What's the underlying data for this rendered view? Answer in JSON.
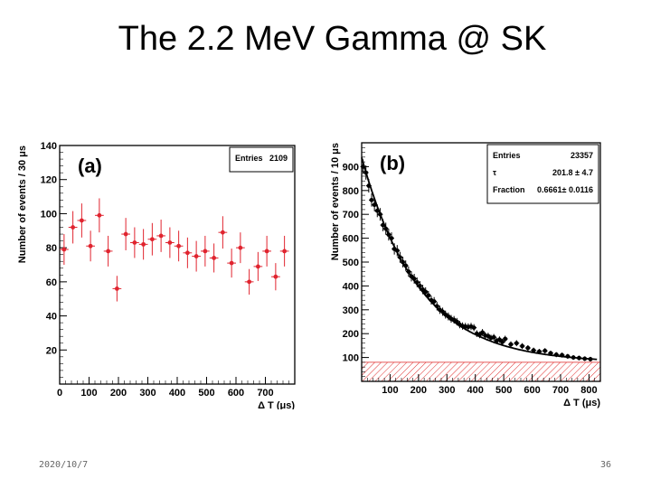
{
  "slide": {
    "title": "The 2.2 MeV Gamma @ SK",
    "date": "2020/10/7",
    "page": "36"
  },
  "chart_data": [
    {
      "type": "scatter",
      "panel_label": "(a)",
      "title": "",
      "xlabel": "Δ T (μs)",
      "ylabel": "Number of events / 30 μs",
      "xlim": [
        0,
        800
      ],
      "ylim": [
        0,
        140
      ],
      "xticks": [
        0,
        100,
        200,
        300,
        400,
        500,
        600,
        700
      ],
      "yticks": [
        20,
        40,
        60,
        80,
        100,
        120,
        140
      ],
      "stats": [
        {
          "label": "Entries",
          "value": "2109"
        }
      ],
      "color": "#e0242f",
      "series": [
        {
          "name": "data",
          "x": [
            15,
            45,
            75,
            105,
            135,
            165,
            195,
            225,
            255,
            285,
            315,
            345,
            375,
            405,
            435,
            465,
            495,
            525,
            555,
            585,
            615,
            645,
            675,
            705,
            735,
            765
          ],
          "y": [
            79,
            92,
            96,
            81,
            99,
            78,
            56,
            88,
            83,
            82,
            85,
            87,
            83,
            81,
            77,
            75,
            78,
            74,
            89,
            71,
            80,
            60,
            69,
            78,
            63,
            78
          ],
          "yerr": [
            9,
            9.5,
            10,
            9,
            10,
            9,
            7.5,
            9.5,
            9,
            9,
            9.5,
            9.5,
            9,
            9,
            9,
            9,
            9,
            8.5,
            9.5,
            8.5,
            9,
            7.5,
            8.5,
            9,
            8,
            9
          ]
        }
      ]
    },
    {
      "type": "scatter",
      "panel_label": "(b)",
      "title": "",
      "xlabel": "Δ T (μs)",
      "ylabel": "Number of events / 10 μs",
      "xlim": [
        0,
        840
      ],
      "ylim": [
        0,
        1000
      ],
      "xticks": [
        100,
        200,
        300,
        400,
        500,
        600,
        700,
        800
      ],
      "yticks": [
        100,
        200,
        300,
        400,
        500,
        600,
        700,
        800,
        900
      ],
      "stats": [
        {
          "label": "Entries",
          "value": "23357"
        },
        {
          "label": "τ",
          "value": "201.8 ± 4.7"
        },
        {
          "label": "Fraction",
          "value": "0.6661± 0.0116"
        }
      ],
      "fit": {
        "function": "A*exp(-t/tau)+B",
        "A": 860,
        "tau": 201.8,
        "B": 78
      },
      "background_band": [
        0,
        80
      ],
      "color": "#000000",
      "band_color": "#e03030",
      "series": [
        {
          "name": "data",
          "x": [
            5,
            15,
            25,
            35,
            45,
            55,
            65,
            75,
            85,
            95,
            105,
            115,
            125,
            135,
            145,
            155,
            165,
            175,
            185,
            195,
            205,
            215,
            225,
            235,
            245,
            255,
            265,
            275,
            285,
            295,
            305,
            315,
            325,
            335,
            345,
            355,
            365,
            375,
            385,
            395,
            405,
            415,
            425,
            435,
            445,
            455,
            465,
            475,
            485,
            495,
            505,
            525,
            545,
            565,
            585,
            605,
            625,
            645,
            665,
            685,
            705,
            725,
            745,
            765,
            785,
            805
          ],
          "y": [
            900,
            875,
            820,
            760,
            740,
            715,
            700,
            655,
            640,
            615,
            600,
            555,
            548,
            520,
            500,
            485,
            460,
            440,
            430,
            415,
            400,
            385,
            375,
            360,
            340,
            335,
            315,
            300,
            292,
            280,
            272,
            262,
            258,
            250,
            238,
            232,
            230,
            228,
            230,
            225,
            200,
            195,
            205,
            192,
            190,
            182,
            185,
            170,
            175,
            165,
            178,
            155,
            160,
            148,
            140,
            130,
            125,
            128,
            118,
            112,
            110,
            105,
            100,
            98,
            95,
            93
          ]
        }
      ]
    }
  ]
}
